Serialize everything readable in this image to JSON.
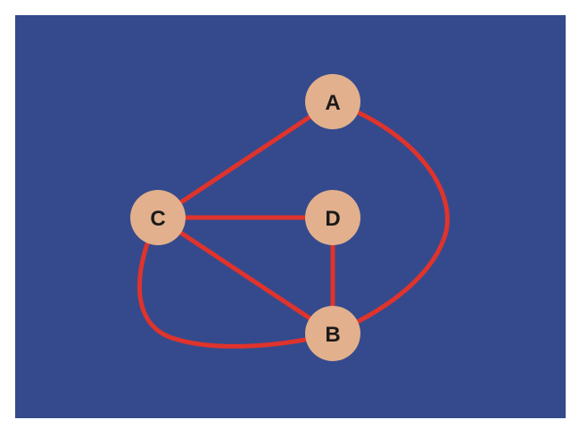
{
  "colors": {
    "page": "#ffffff",
    "panel": "#354A8C",
    "edge": "#E0332C",
    "node_fill": "#E2B08C",
    "node_text": "#1a1a1a"
  },
  "nodes": [
    {
      "id": "A",
      "label": "A"
    },
    {
      "id": "C",
      "label": "C"
    },
    {
      "id": "D",
      "label": "D"
    },
    {
      "id": "B",
      "label": "B"
    }
  ],
  "edges": [
    {
      "from": "A",
      "to": "C"
    },
    {
      "from": "C",
      "to": "D"
    },
    {
      "from": "C",
      "to": "B"
    },
    {
      "from": "D",
      "to": "B"
    },
    {
      "from": "A",
      "to": "B",
      "shape": "curved"
    },
    {
      "from": "C",
      "to": "B",
      "shape": "curved"
    }
  ]
}
